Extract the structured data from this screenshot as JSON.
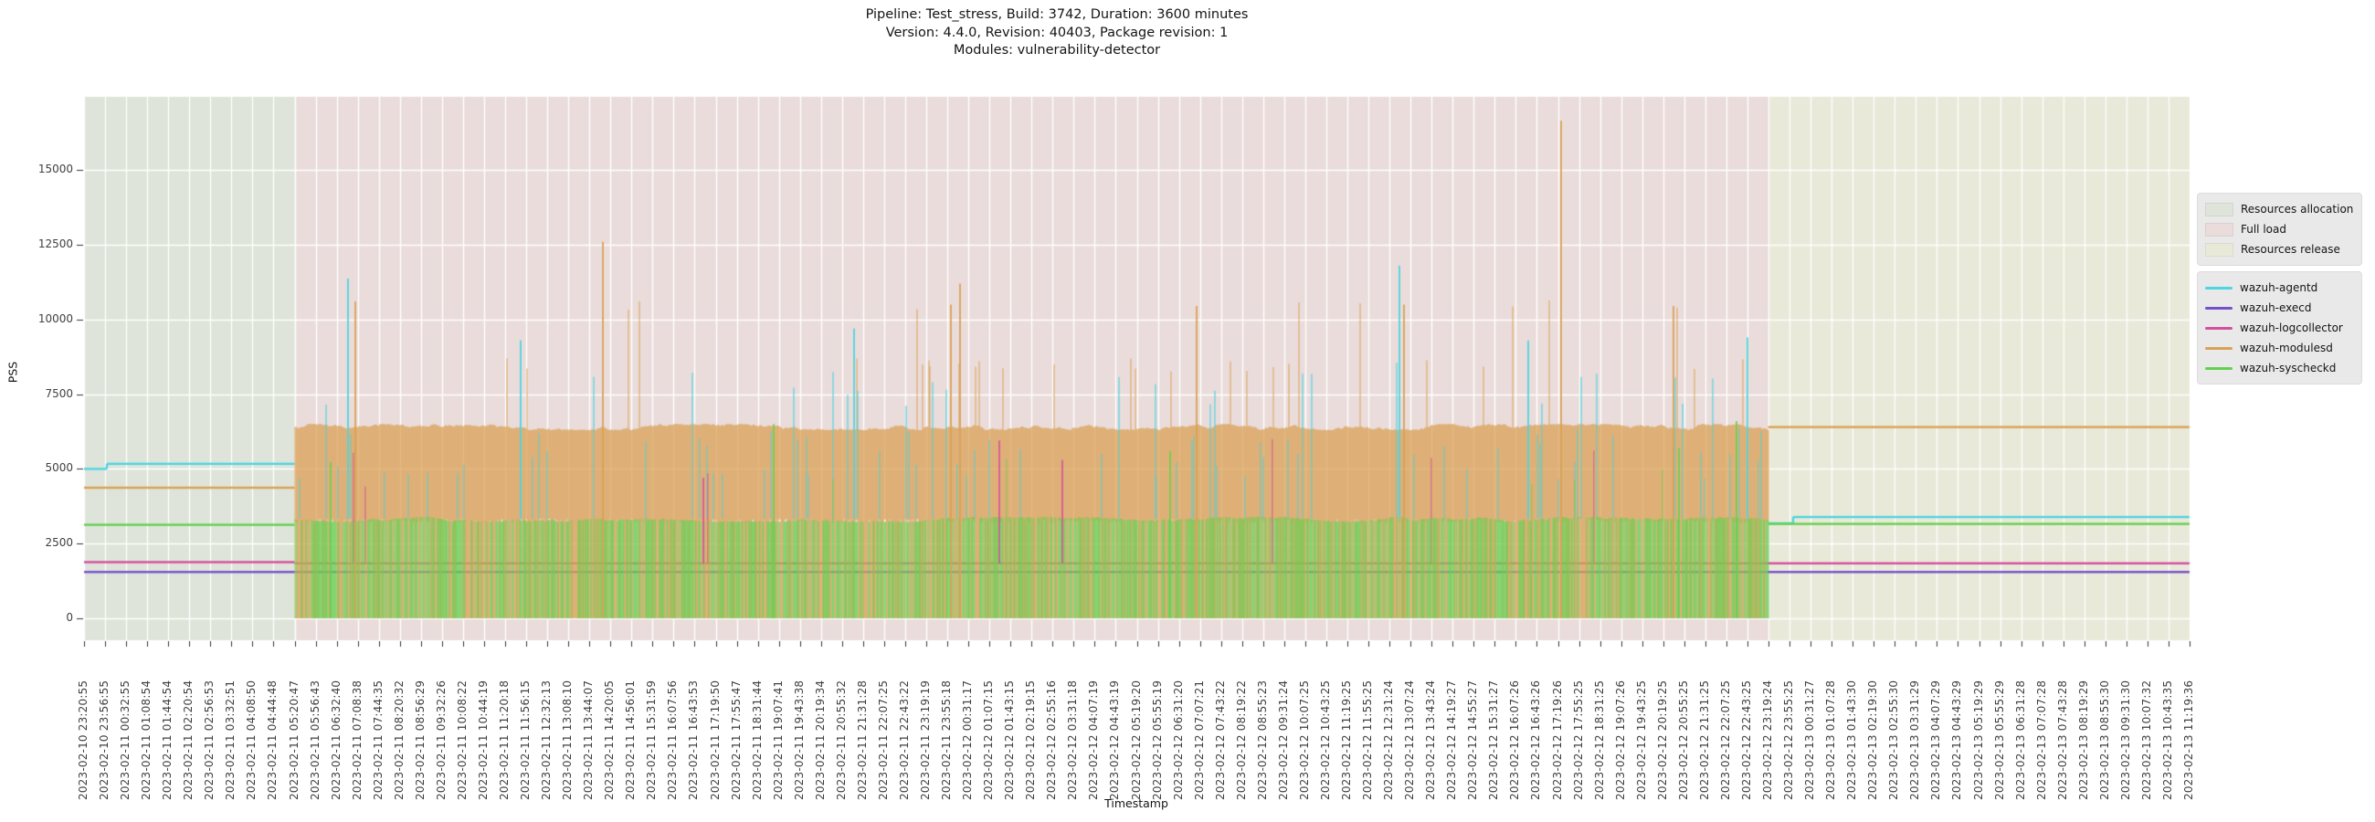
{
  "chart_data": {
    "type": "line",
    "title_lines": [
      "Pipeline: Test_stress, Build: 3742, Duration: 3600 minutes",
      "Version: 4.4.0, Revision: 40403, Package revision: 1",
      "Modules: vulnerability-detector"
    ],
    "xlabel": "Timestamp",
    "ylabel": "PSS",
    "y_ticks": [
      0,
      2500,
      5000,
      7500,
      10000,
      12500,
      15000
    ],
    "ylim": [
      -730,
      17450
    ],
    "grid": "white, vertical line at every x tick, horizontal line at every y tick",
    "legend_position": "right of axes, two boxes",
    "phases": [
      {
        "label": "Resources allocation",
        "color": "#dee4d9",
        "start_tick_index": 0,
        "end_tick_index": 10
      },
      {
        "label": "Full load",
        "color": "#eadcdb",
        "start_tick_index": 10,
        "end_tick_index": 80
      },
      {
        "label": "Resources release",
        "color": "#e9e9d9",
        "start_tick_index": 80,
        "end_tick_index": 100
      }
    ],
    "series": [
      {
        "name": "wazuh-agentd",
        "color": "#4ed5e0",
        "allocation": {
          "start_value": 5000,
          "step_value": 5170,
          "step_at_x": 117
        },
        "full_load": {
          "baseline": 3340,
          "excursion_p": 0.05,
          "excursion_range": [
            4600,
            6400
          ],
          "spike_p": 0.012,
          "spike_range": [
            6900,
            8600
          ],
          "max_spikes": [
            [
              381,
              11370
            ],
            [
              570,
              9300
            ],
            [
              935,
              9700
            ],
            [
              1532,
              11800
            ],
            [
              1673,
              9300
            ],
            [
              1913,
              9400
            ]
          ]
        },
        "release": {
          "initial_value": 3180,
          "final_value": 3390,
          "step_at_x": 1963
        }
      },
      {
        "name": "wazuh-execd",
        "color": "#7451cb",
        "allocation": {
          "value": 1550
        },
        "full_load": {
          "baseline": 1550
        },
        "release": {
          "value": 1550
        }
      },
      {
        "name": "wazuh-logcollector",
        "color": "#d44f9e",
        "allocation": {
          "value": 1880
        },
        "full_load": {
          "baseline": 1840,
          "spike_p": 0.004,
          "spike_range": [
            4300,
            6100
          ],
          "max_spikes": [
            [
              770,
              4700
            ],
            [
              1094,
              5950
            ],
            [
              1163,
              5300
            ]
          ]
        },
        "release": {
          "value": 1840
        }
      },
      {
        "name": "wazuh-modulesd",
        "color": "#d9a156",
        "allocation": {
          "value": 4370
        },
        "full_load": {
          "band_top": 6400,
          "band_top_jitter": 100,
          "band_bottom": 3270,
          "zero_drop_p": 0.52,
          "spike8_p": 0.018,
          "spike8_range": [
            8250,
            8700
          ],
          "spike10_p": 0.006,
          "spike10_range": [
            10300,
            10700
          ],
          "max_spikes": [
            [
              389,
              10600
            ],
            [
              660,
              12600
            ],
            [
              1041,
              10500
            ],
            [
              1051,
              11200
            ],
            [
              1310,
              10450
            ],
            [
              1537,
              10500
            ],
            [
              1709,
              16650
            ],
            [
              1832,
              10450
            ]
          ]
        },
        "release": {
          "value": 6400
        }
      },
      {
        "name": "wazuh-syscheckd",
        "color": "#63d150",
        "allocation": {
          "value": 3130
        },
        "full_load": {
          "band_top": 3310,
          "band_top_jitter": 80,
          "zero_drop_p": 0.33,
          "spike_p": 0.006,
          "spike_range": [
            4300,
            5900
          ],
          "max_spikes": [
            [
              362,
              5230
            ],
            [
              847,
              6500
            ],
            [
              1281,
              5600
            ],
            [
              1838,
              5700
            ],
            [
              1901,
              6600
            ]
          ]
        },
        "release": {
          "value": 3160
        }
      }
    ],
    "x_tick_labels": [
      "2023-02-10 23:20:55",
      "2023-02-10 23:56:55",
      "2023-02-11 00:32:55",
      "2023-02-11 01:08:54",
      "2023-02-11 01:44:54",
      "2023-02-11 02:20:54",
      "2023-02-11 02:56:53",
      "2023-02-11 03:32:51",
      "2023-02-11 04:08:50",
      "2023-02-11 04:44:48",
      "2023-02-11 05:20:47",
      "2023-02-11 05:56:43",
      "2023-02-11 06:32:40",
      "2023-02-11 07:08:38",
      "2023-02-11 07:44:35",
      "2023-02-11 08:20:32",
      "2023-02-11 08:56:29",
      "2023-02-11 09:32:26",
      "2023-02-11 10:08:22",
      "2023-02-11 10:44:19",
      "2023-02-11 11:20:18",
      "2023-02-11 11:56:15",
      "2023-02-11 12:32:13",
      "2023-02-11 13:08:10",
      "2023-02-11 13:44:07",
      "2023-02-11 14:20:05",
      "2023-02-11 14:56:01",
      "2023-02-11 15:31:59",
      "2023-02-11 16:07:56",
      "2023-02-11 16:43:53",
      "2023-02-11 17:19:50",
      "2023-02-11 17:55:47",
      "2023-02-11 18:31:44",
      "2023-02-11 19:07:41",
      "2023-02-11 19:43:38",
      "2023-02-11 20:19:34",
      "2023-02-11 20:55:32",
      "2023-02-11 21:31:28",
      "2023-02-11 22:07:25",
      "2023-02-11 22:43:22",
      "2023-02-11 23:19:19",
      "2023-02-11 23:55:18",
      "2023-02-12 00:31:17",
      "2023-02-12 01:07:15",
      "2023-02-12 01:43:15",
      "2023-02-12 02:19:15",
      "2023-02-12 02:55:16",
      "2023-02-12 03:31:18",
      "2023-02-12 04:07:19",
      "2023-02-12 04:43:19",
      "2023-02-12 05:19:20",
      "2023-02-12 05:55:19",
      "2023-02-12 06:31:20",
      "2023-02-12 07:07:21",
      "2023-02-12 07:43:22",
      "2023-02-12 08:19:22",
      "2023-02-12 08:55:23",
      "2023-02-12 09:31:24",
      "2023-02-12 10:07:25",
      "2023-02-12 10:43:25",
      "2023-02-12 11:19:25",
      "2023-02-12 11:55:25",
      "2023-02-12 12:31:24",
      "2023-02-12 13:07:24",
      "2023-02-12 13:43:24",
      "2023-02-12 14:19:27",
      "2023-02-12 14:55:27",
      "2023-02-12 15:31:27",
      "2023-02-12 16:07:26",
      "2023-02-12 16:43:26",
      "2023-02-12 17:19:26",
      "2023-02-12 17:55:25",
      "2023-02-12 18:31:25",
      "2023-02-12 19:07:26",
      "2023-02-12 19:43:25",
      "2023-02-12 20:19:25",
      "2023-02-12 20:55:25",
      "2023-02-12 21:31:25",
      "2023-02-12 22:07:25",
      "2023-02-12 22:43:25",
      "2023-02-12 23:19:24",
      "2023-02-12 23:55:25",
      "2023-02-13 00:31:27",
      "2023-02-13 01:07:28",
      "2023-02-13 01:43:30",
      "2023-02-13 02:19:30",
      "2023-02-13 02:55:30",
      "2023-02-13 03:31:29",
      "2023-02-13 04:07:29",
      "2023-02-13 04:43:29",
      "2023-02-13 05:19:29",
      "2023-02-13 05:55:29",
      "2023-02-13 06:31:28",
      "2023-02-13 07:07:28",
      "2023-02-13 07:43:28",
      "2023-02-13 08:19:29",
      "2023-02-13 08:55:30",
      "2023-02-13 09:31:30",
      "2023-02-13 10:07:32",
      "2023-02-13 10:43:35",
      "2023-02-13 11:19:36"
    ]
  }
}
